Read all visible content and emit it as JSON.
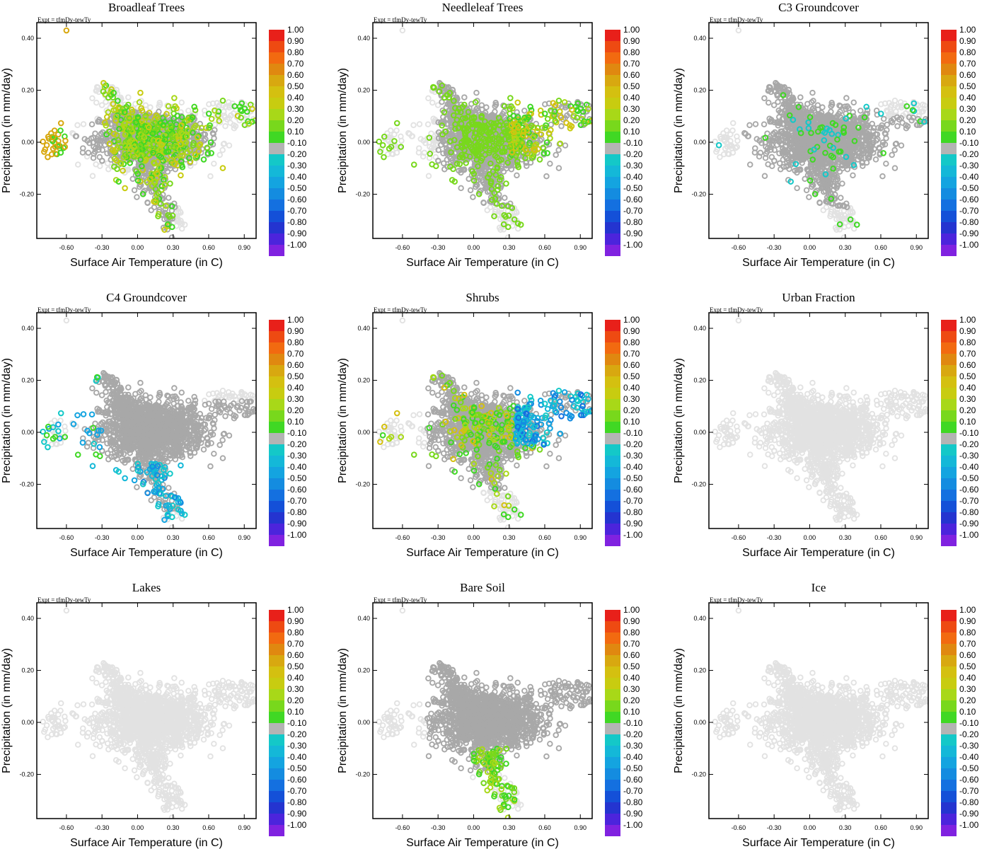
{
  "chart_data": {
    "type": "scatter",
    "experiment": "Expt = tfmDy-tewTy",
    "xlabel": "Surface Air Temperature (in C)",
    "ylabel": "Precipitation (in mm/day)",
    "xlim": [
      -0.85,
      1.0
    ],
    "ylim": [
      -0.37,
      0.46
    ],
    "xticks": [
      -0.6,
      -0.3,
      0.0,
      0.3,
      0.6,
      0.9
    ],
    "xtick_labels": [
      "-0.60",
      "-0.30",
      "0.00",
      "0.30",
      "0.60",
      "0.90"
    ],
    "yticks": [
      -0.2,
      0.0,
      0.2,
      0.4
    ],
    "ytick_labels": [
      "-0.20",
      "0.00",
      "0.20",
      "0.40"
    ],
    "colorbar": {
      "labels": [
        "1.00",
        "0.90",
        "0.80",
        "0.70",
        "0.60",
        "0.50",
        "0.40",
        "0.30",
        "0.20",
        "0.10",
        "-0.10",
        "-0.20",
        "-0.30",
        "-0.40",
        "-0.50",
        "-0.60",
        "-0.70",
        "-0.80",
        "-0.90",
        "-1.00"
      ],
      "colors": [
        "#e8201a",
        "#ee4a12",
        "#f26a10",
        "#e08810",
        "#d8a810",
        "#d4c010",
        "#c8cc10",
        "#a8d818",
        "#78d81c",
        "#40d824",
        "#b4b4b4",
        "#14c8c8",
        "#14b8d8",
        "#14a4e0",
        "#148ce0",
        "#1470e0",
        "#1450d8",
        "#2434d0",
        "#4c24dc",
        "#8022e0"
      ]
    },
    "background_color": "#e2e2e2",
    "neutral_color": "#a8a8a8",
    "panels": [
      {
        "title": "Broadleaf Trees",
        "mode": "broadleaf"
      },
      {
        "title": "Needleleaf Trees",
        "mode": "needleleaf"
      },
      {
        "title": "C3 Groundcover",
        "mode": "c3"
      },
      {
        "title": "C4 Groundcover",
        "mode": "c4"
      },
      {
        "title": "Shrubs",
        "mode": "shrubs"
      },
      {
        "title": "Urban Fraction",
        "mode": "none"
      },
      {
        "title": "Lakes",
        "mode": "none"
      },
      {
        "title": "Bare Soil",
        "mode": "baresoil"
      },
      {
        "title": "Ice",
        "mode": "none"
      }
    ]
  }
}
